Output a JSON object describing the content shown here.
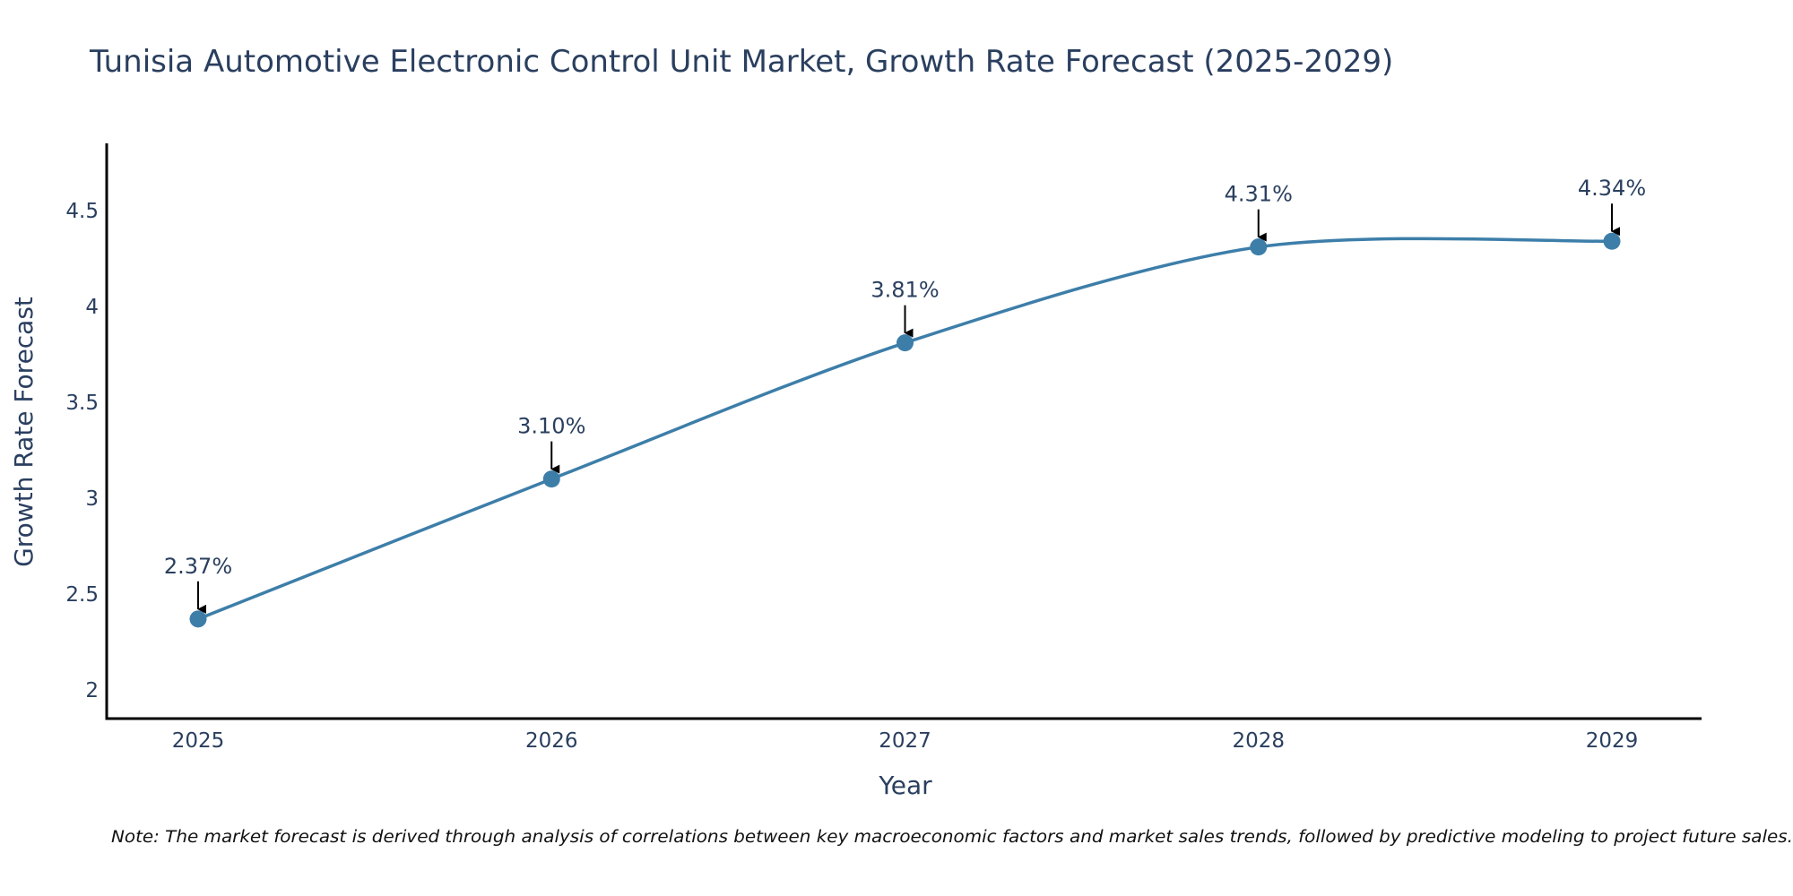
{
  "chart_data": {
    "type": "line",
    "title": "Tunisia Automotive Electronic Control Unit Market, Growth Rate Forecast (2025-2029)",
    "xlabel": "Year",
    "ylabel": "Growth Rate Forecast",
    "categories": [
      "2025",
      "2026",
      "2027",
      "2028",
      "2029"
    ],
    "series": [
      {
        "name": "Growth Rate Forecast",
        "values": [
          2.37,
          3.1,
          3.81,
          4.31,
          4.34
        ],
        "labels": [
          "2.37%",
          "3.10%",
          "3.81%",
          "4.31%",
          "4.34%"
        ]
      }
    ],
    "ylim": [
      1.85,
      4.83
    ],
    "yticks": [
      2,
      2.5,
      3,
      3.5,
      4,
      4.5
    ],
    "ytick_labels": [
      "2",
      "2.5",
      "3",
      "3.5",
      "4",
      "4.5"
    ],
    "grid": false,
    "line_color": "#3d7ea9",
    "annotation_color": "#000000",
    "note": "Note: The market forecast is derived through analysis of correlations between key macroeconomic factors and market sales trends, followed by predictive modeling to project future sales."
  }
}
